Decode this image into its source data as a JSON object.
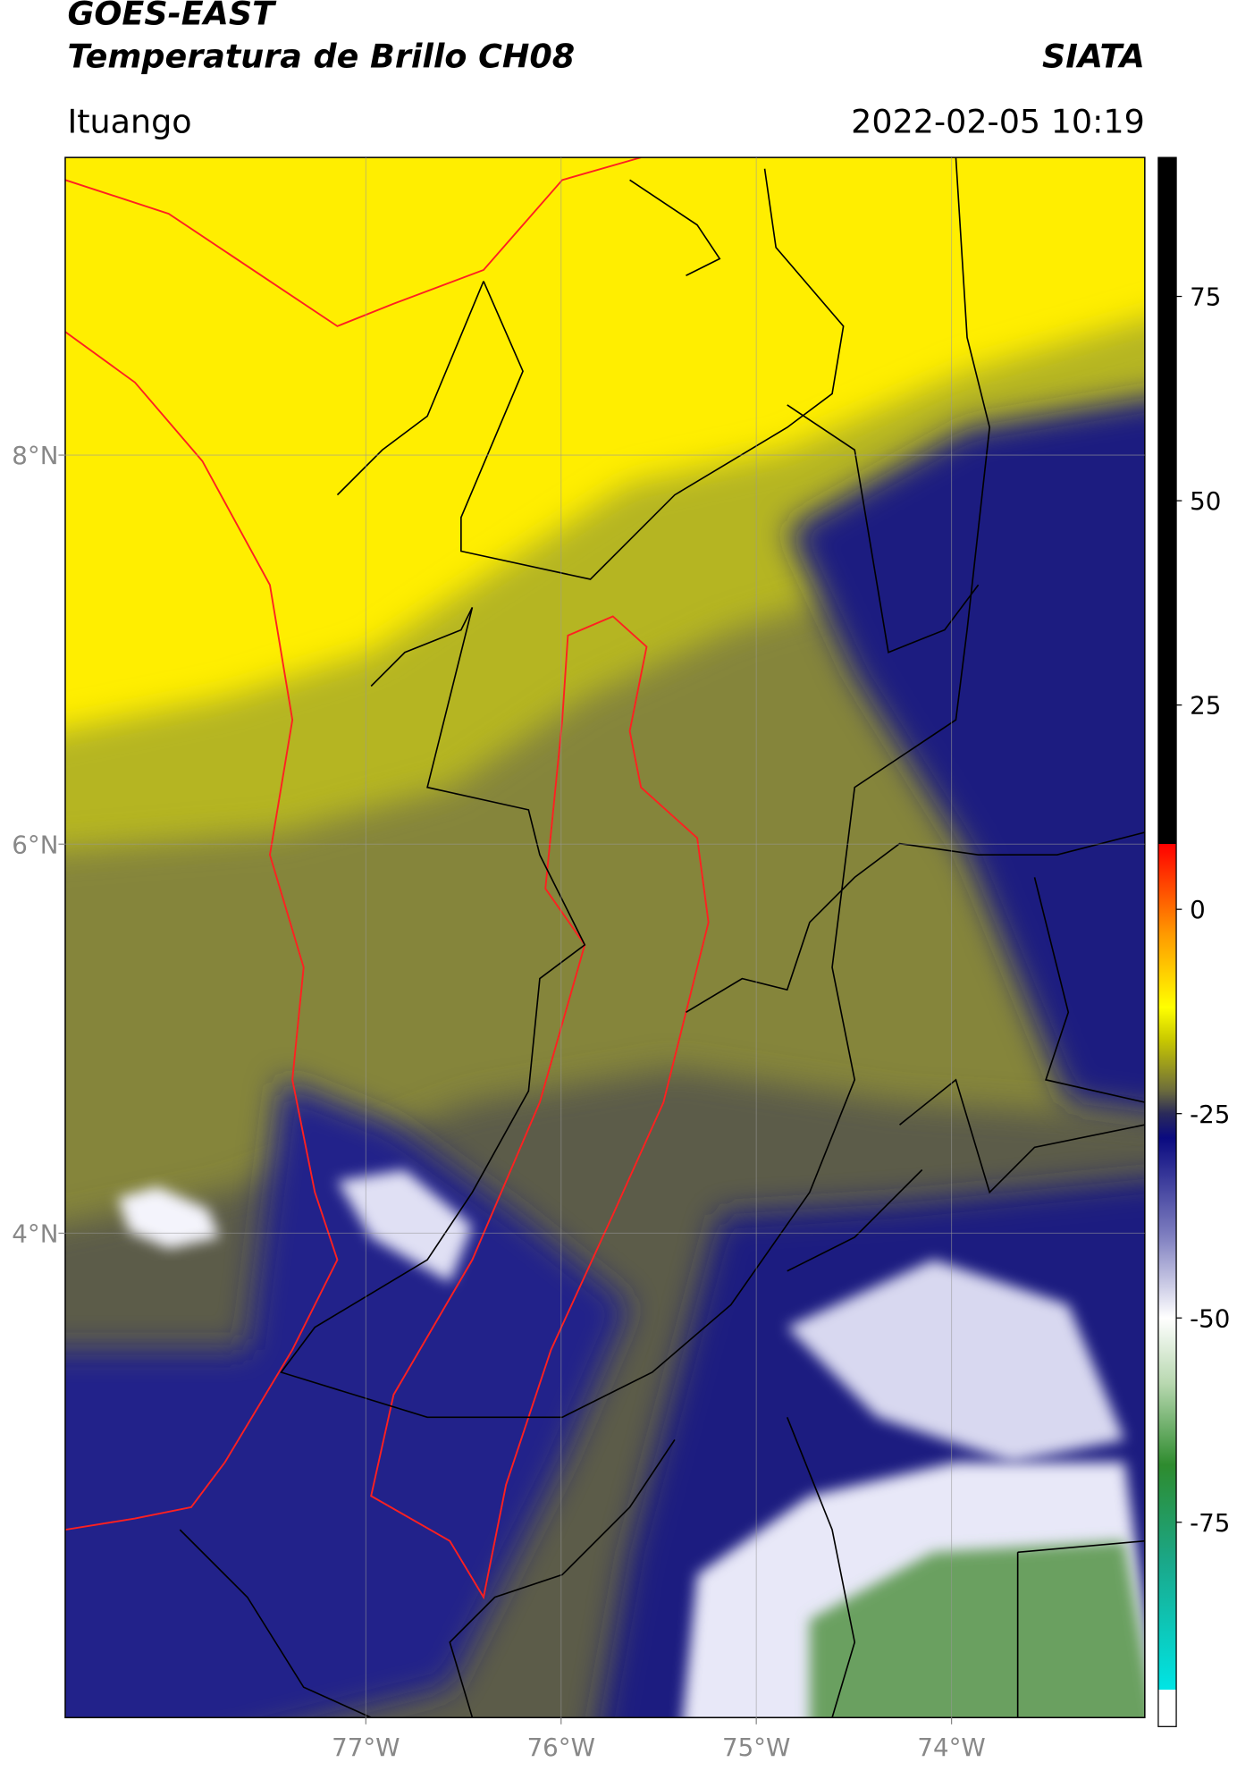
{
  "header": {
    "title": "GOES-EAST",
    "subtitle": "Temperatura de Brillo CH08",
    "source": "SIATA",
    "region": "Ituango",
    "datetime": "2022-02-05 10:19"
  },
  "map": {
    "xlim": [
      -78.54,
      -73.01
    ],
    "ylim": [
      1.51,
      9.53
    ],
    "xticks": [
      {
        "value": -77,
        "label": "77°W"
      },
      {
        "value": -76,
        "label": "76°W"
      },
      {
        "value": -75,
        "label": "75°W"
      },
      {
        "value": -74,
        "label": "74°W"
      }
    ],
    "yticks": [
      {
        "value": 8,
        "label": "8°N"
      },
      {
        "value": 6,
        "label": "6°N"
      },
      {
        "value": 4,
        "label": "4°N"
      }
    ],
    "grid": true
  },
  "colorbar": {
    "lim": [
      -100,
      92
    ],
    "ticks": [
      75,
      50,
      25,
      0,
      -25,
      -50,
      -75
    ],
    "stops": [
      {
        "value": -100,
        "color": "#ffffff"
      },
      {
        "value": -95.5,
        "color": "#ffffff"
      },
      {
        "value": -95.5,
        "color": "#00e5e5"
      },
      {
        "value": -80,
        "color": "#1aa88a"
      },
      {
        "value": -68,
        "color": "#2e8b2e"
      },
      {
        "value": -58,
        "color": "#b8d8b0"
      },
      {
        "value": -50,
        "color": "#ffffff"
      },
      {
        "value": -40,
        "color": "#7f7fc0"
      },
      {
        "value": -28,
        "color": "#0a0a80"
      },
      {
        "value": -25,
        "color": "#2a2a5a"
      },
      {
        "value": -22,
        "color": "#6f6f3a"
      },
      {
        "value": -16,
        "color": "#c8c800"
      },
      {
        "value": -12,
        "color": "#ffff00"
      },
      {
        "value": -3,
        "color": "#ff9900"
      },
      {
        "value": 8,
        "color": "#ff0000"
      },
      {
        "value": 8,
        "color": "#000000"
      },
      {
        "value": 92,
        "color": "#000000"
      }
    ]
  }
}
